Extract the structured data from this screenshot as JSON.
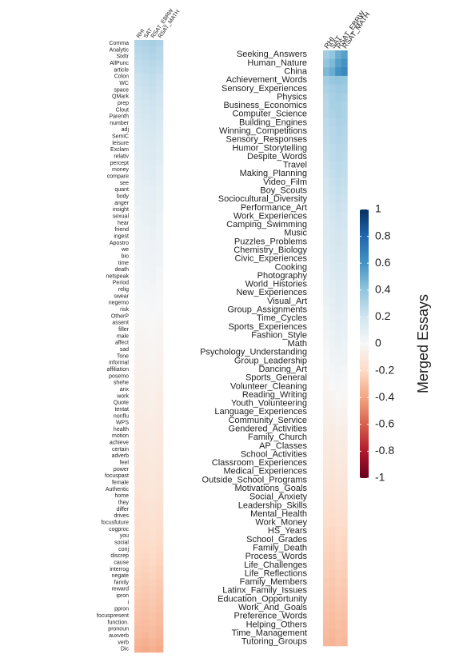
{
  "chart_data": [
    {
      "type": "heatmap",
      "x": [
        "RHI",
        "SAT",
        "RSAT_EBRW",
        "RSAT_MATH"
      ],
      "y": [
        "Comma",
        "Analytic",
        "Sixltr",
        "AllPunc",
        "article",
        "Colon",
        "WC",
        "space",
        "QMark",
        "prep",
        "Clout",
        "Parenth",
        "number",
        "adj",
        "SemiC",
        "leisure",
        "Exclam",
        "relativ",
        "percept",
        "money",
        "compare",
        "see",
        "quant",
        "body",
        "anger",
        "insight",
        "sexual",
        "hear",
        "friend",
        "ingest",
        "Apostro",
        "we",
        "bio",
        "time",
        "death",
        "netspeak",
        "Period",
        "relig",
        "swear",
        "negemo",
        "risk",
        "OtherP",
        "assent",
        "filler",
        "male",
        "affect",
        "sad",
        "Tone",
        "informal",
        "affiliation",
        "posemo",
        "shehe",
        "anx",
        "work",
        "Quote",
        "tentat",
        "nonflu",
        "WPS",
        "health",
        "motion",
        "achieve",
        "certain",
        "adverb",
        "feel",
        "power",
        "focuspast",
        "female",
        "Authentic",
        "home",
        "they",
        "differ",
        "drives",
        "focusfuture",
        "cogproc",
        "you",
        "social",
        "conj",
        "discrep",
        "cause",
        "interrog",
        "negate",
        "family",
        "reward",
        "ipron",
        "i",
        "ppron",
        "focuspresent",
        "function.",
        "pronoun",
        "auxverb",
        "verb",
        "Dic"
      ],
      "values": [
        [
          0.3,
          0.32,
          0.33,
          0.31
        ],
        [
          0.28,
          0.3,
          0.31,
          0.29
        ],
        [
          0.27,
          0.29,
          0.3,
          0.28
        ],
        [
          0.25,
          0.27,
          0.28,
          0.26
        ],
        [
          0.24,
          0.26,
          0.27,
          0.25
        ],
        [
          0.22,
          0.24,
          0.25,
          0.23
        ],
        [
          0.21,
          0.23,
          0.24,
          0.22
        ],
        [
          0.2,
          0.22,
          0.23,
          0.21
        ],
        [
          0.19,
          0.21,
          0.22,
          0.2
        ],
        [
          0.18,
          0.2,
          0.21,
          0.19
        ],
        [
          0.17,
          0.19,
          0.2,
          0.18
        ],
        [
          0.16,
          0.18,
          0.19,
          0.17
        ],
        [
          0.15,
          0.17,
          0.18,
          0.16
        ],
        [
          0.14,
          0.16,
          0.17,
          0.15
        ],
        [
          0.13,
          0.15,
          0.16,
          0.14
        ],
        [
          0.12,
          0.14,
          0.15,
          0.13
        ],
        [
          0.12,
          0.13,
          0.14,
          0.12
        ],
        [
          0.11,
          0.13,
          0.14,
          0.12
        ],
        [
          0.1,
          0.12,
          0.13,
          0.11
        ],
        [
          0.1,
          0.11,
          0.12,
          0.1
        ],
        [
          0.09,
          0.11,
          0.12,
          0.1
        ],
        [
          0.08,
          0.1,
          0.11,
          0.09
        ],
        [
          0.08,
          0.09,
          0.1,
          0.08
        ],
        [
          0.07,
          0.09,
          0.1,
          0.08
        ],
        [
          0.07,
          0.08,
          0.09,
          0.07
        ],
        [
          0.06,
          0.08,
          0.09,
          0.07
        ],
        [
          0.06,
          0.07,
          0.08,
          0.06
        ],
        [
          0.05,
          0.07,
          0.08,
          0.06
        ],
        [
          0.05,
          0.06,
          0.07,
          0.05
        ],
        [
          0.04,
          0.06,
          0.07,
          0.05
        ],
        [
          0.04,
          0.05,
          0.06,
          0.04
        ],
        [
          0.03,
          0.05,
          0.06,
          0.04
        ],
        [
          0.03,
          0.04,
          0.05,
          0.03
        ],
        [
          0.02,
          0.04,
          0.05,
          0.03
        ],
        [
          0.02,
          0.03,
          0.04,
          0.02
        ],
        [
          0.02,
          0.03,
          0.03,
          0.02
        ],
        [
          0.01,
          0.02,
          0.03,
          0.01
        ],
        [
          0.01,
          0.02,
          0.02,
          0.01
        ],
        [
          0.01,
          0.01,
          0.02,
          0
        ],
        [
          0,
          0.01,
          0.01,
          0
        ],
        [
          0,
          0,
          0.01,
          0
        ],
        [
          0,
          0,
          0,
          -0.01
        ],
        [
          -0.01,
          0,
          0,
          -0.01
        ],
        [
          -0.01,
          -0.01,
          0,
          -0.02
        ],
        [
          -0.02,
          -0.01,
          -0.01,
          -0.02
        ],
        [
          -0.02,
          -0.02,
          -0.01,
          -0.03
        ],
        [
          -0.03,
          -0.02,
          -0.02,
          -0.03
        ],
        [
          -0.03,
          -0.03,
          -0.02,
          -0.04
        ],
        [
          -0.04,
          -0.03,
          -0.03,
          -0.04
        ],
        [
          -0.04,
          -0.04,
          -0.03,
          -0.05
        ],
        [
          -0.05,
          -0.04,
          -0.04,
          -0.05
        ],
        [
          -0.05,
          -0.05,
          -0.04,
          -0.06
        ],
        [
          -0.06,
          -0.05,
          -0.05,
          -0.06
        ],
        [
          -0.06,
          -0.06,
          -0.05,
          -0.07
        ],
        [
          -0.07,
          -0.06,
          -0.06,
          -0.07
        ],
        [
          -0.07,
          -0.07,
          -0.06,
          -0.08
        ],
        [
          -0.08,
          -0.07,
          -0.07,
          -0.08
        ],
        [
          -0.08,
          -0.08,
          -0.07,
          -0.09
        ],
        [
          -0.09,
          -0.08,
          -0.08,
          -0.09
        ],
        [
          -0.09,
          -0.09,
          -0.08,
          -0.1
        ],
        [
          -0.1,
          -0.09,
          -0.09,
          -0.1
        ],
        [
          -0.1,
          -0.1,
          -0.09,
          -0.11
        ],
        [
          -0.11,
          -0.1,
          -0.1,
          -0.11
        ],
        [
          -0.11,
          -0.11,
          -0.1,
          -0.12
        ],
        [
          -0.12,
          -0.11,
          -0.11,
          -0.12
        ],
        [
          -0.12,
          -0.12,
          -0.11,
          -0.13
        ],
        [
          -0.13,
          -0.12,
          -0.12,
          -0.13
        ],
        [
          -0.13,
          -0.13,
          -0.12,
          -0.14
        ],
        [
          -0.14,
          -0.13,
          -0.13,
          -0.14
        ],
        [
          -0.15,
          -0.14,
          -0.14,
          -0.15
        ],
        [
          -0.15,
          -0.15,
          -0.14,
          -0.16
        ],
        [
          -0.16,
          -0.16,
          -0.15,
          -0.17
        ],
        [
          -0.17,
          -0.16,
          -0.16,
          -0.17
        ],
        [
          -0.17,
          -0.17,
          -0.16,
          -0.18
        ],
        [
          -0.18,
          -0.18,
          -0.17,
          -0.19
        ],
        [
          -0.19,
          -0.19,
          -0.18,
          -0.2
        ],
        [
          -0.2,
          -0.2,
          -0.19,
          -0.21
        ],
        [
          -0.2,
          -0.21,
          -0.2,
          -0.22
        ],
        [
          -0.21,
          -0.22,
          -0.21,
          -0.23
        ],
        [
          -0.22,
          -0.23,
          -0.22,
          -0.24
        ],
        [
          -0.23,
          -0.24,
          -0.23,
          -0.25
        ],
        [
          -0.24,
          -0.25,
          -0.24,
          -0.26
        ],
        [
          -0.25,
          -0.26,
          -0.25,
          -0.27
        ],
        [
          -0.26,
          -0.27,
          -0.26,
          -0.28
        ],
        [
          -0.27,
          -0.28,
          -0.27,
          -0.29
        ],
        [
          -0.28,
          -0.29,
          -0.28,
          -0.3
        ],
        [
          -0.29,
          -0.3,
          -0.29,
          -0.31
        ],
        [
          -0.3,
          -0.31,
          -0.3,
          -0.32
        ],
        [
          -0.31,
          -0.32,
          -0.31,
          -0.33
        ],
        [
          -0.32,
          -0.34,
          -0.32,
          -0.34
        ],
        [
          -0.34,
          -0.36,
          -0.34,
          -0.36
        ],
        [
          -0.36,
          -0.38,
          -0.36,
          -0.38
        ]
      ],
      "zlim": [
        -1,
        1
      ],
      "colors": [
        "#67001f",
        "#b2182b",
        "#d6604d",
        "#f4a582",
        "#fddbc7",
        "#f7f7f7",
        "#d1e5f0",
        "#92c5de",
        "#4393c3",
        "#2166ac",
        "#053061"
      ]
    },
    {
      "type": "heatmap",
      "x": [
        "RHI",
        "SAT",
        "RSAT_EBRW",
        "RSAT_MATH"
      ],
      "y": [
        "Seeking_Answers",
        "Human_Nature",
        "China",
        "Achievement_Words",
        "Sensory_Experiences",
        "Physics",
        "Business_Economics",
        "Computer_Science",
        "Building_Engines",
        "Winning_Competitions",
        "Sensory_Responses",
        "Humor_Storytelling",
        "Despite_Words",
        "Travel",
        "Making_Planning",
        "Video_Film",
        "Boy_Scouts",
        "Sociocultural_Diversity",
        "Performance_Art",
        "Work_Experiences",
        "Camping_Swimming",
        "Music",
        "Puzzles_Problems",
        "Chemistry_Biology",
        "Civic_Experiences",
        "Cooking",
        "Photography",
        "World_Histories",
        "New_Experiences",
        "Visual_Art",
        "Group_Assignments",
        "Time_Cycles",
        "Sports_Experiences",
        "Fashion_Style",
        "Math",
        "Psychology_Understanding",
        "Group_Leadership",
        "Dancing_Art",
        "Sports_General",
        "Volunteer_Cleaning",
        "Reading_Writing",
        "Youth_Volunteering",
        "Language_Experiences",
        "Community_Service",
        "Gendered_Activities",
        "Family_Church",
        "AP_Classes",
        "School_Activities",
        "Classroom_Experiences",
        "Medical_Experiences",
        "Outside_School_Programs",
        "Motivations_Goals",
        "Social_Anxiety",
        "Leadership_Skills",
        "Mental_Health",
        "Work_Money",
        "HS_Years",
        "School_Grades",
        "Family_Death",
        "Process_Words",
        "Life_Challenges",
        "Life_Reflections",
        "Family_Members",
        "Latinx_Family_Issues",
        "Education_Opportunity",
        "Work_And_Goals",
        "Preference_Words",
        "Helping_Others",
        "Time_Management",
        "Tutoring_Groups"
      ],
      "values": [
        [
          0.35,
          0.4,
          0.5,
          0.55
        ],
        [
          0.4,
          0.45,
          0.55,
          0.6
        ],
        [
          0.45,
          0.5,
          0.6,
          0.65
        ],
        [
          0.35,
          0.38,
          0.4,
          0.39
        ],
        [
          0.32,
          0.35,
          0.37,
          0.36
        ],
        [
          0.3,
          0.33,
          0.35,
          0.34
        ],
        [
          0.28,
          0.33,
          0.34,
          0.32
        ],
        [
          0.28,
          0.31,
          0.33,
          0.32
        ],
        [
          0.27,
          0.3,
          0.32,
          0.31
        ],
        [
          0.26,
          0.29,
          0.31,
          0.3
        ],
        [
          0.25,
          0.28,
          0.3,
          0.29
        ],
        [
          0.24,
          0.27,
          0.29,
          0.28
        ],
        [
          0.23,
          0.26,
          0.28,
          0.27
        ],
        [
          0.22,
          0.25,
          0.27,
          0.26
        ],
        [
          0.21,
          0.24,
          0.26,
          0.25
        ],
        [
          0.2,
          0.23,
          0.25,
          0.24
        ],
        [
          0.19,
          0.22,
          0.24,
          0.23
        ],
        [
          0.18,
          0.21,
          0.23,
          0.22
        ],
        [
          0.17,
          0.2,
          0.22,
          0.21
        ],
        [
          0.16,
          0.19,
          0.21,
          0.2
        ],
        [
          0.15,
          0.18,
          0.2,
          0.19
        ],
        [
          0.15,
          0.17,
          0.19,
          0.18
        ],
        [
          0.14,
          0.17,
          0.19,
          0.18
        ],
        [
          0.13,
          0.16,
          0.18,
          0.17
        ],
        [
          0.12,
          0.15,
          0.17,
          0.16
        ],
        [
          0.11,
          0.14,
          0.16,
          0.15
        ],
        [
          0.1,
          0.13,
          0.15,
          0.14
        ],
        [
          0.09,
          0.12,
          0.14,
          0.13
        ],
        [
          0.08,
          0.11,
          0.13,
          0.12
        ],
        [
          0.07,
          0.1,
          0.12,
          0.11
        ],
        [
          0.06,
          0.09,
          0.11,
          0.1
        ],
        [
          0.05,
          0.08,
          0.1,
          0.09
        ],
        [
          0.04,
          0.07,
          0.09,
          0.08
        ],
        [
          0.03,
          0.06,
          0.08,
          0.07
        ],
        [
          0.02,
          0.05,
          0.07,
          0.06
        ],
        [
          0.01,
          0.04,
          0.06,
          0.05
        ],
        [
          0,
          0.03,
          0.05,
          0.04
        ],
        [
          0,
          0.02,
          0.03,
          0.02
        ],
        [
          -0.01,
          0.01,
          0.02,
          0.01
        ],
        [
          -0.02,
          0,
          0.01,
          0
        ],
        [
          -0.03,
          -0.02,
          0,
          -0.01
        ],
        [
          -0.04,
          -0.03,
          -0.01,
          -0.02
        ],
        [
          -0.05,
          -0.05,
          -0.03,
          -0.04
        ],
        [
          -0.06,
          -0.06,
          -0.04,
          -0.05
        ],
        [
          -0.07,
          -0.08,
          -0.06,
          -0.07
        ],
        [
          -0.08,
          -0.09,
          -0.07,
          -0.08
        ],
        [
          -0.09,
          -0.1,
          -0.08,
          -0.09
        ],
        [
          -0.1,
          -0.11,
          -0.09,
          -0.1
        ],
        [
          -0.11,
          -0.12,
          -0.1,
          -0.11
        ],
        [
          -0.12,
          -0.13,
          -0.11,
          -0.12
        ],
        [
          -0.13,
          -0.14,
          -0.12,
          -0.13
        ],
        [
          -0.14,
          -0.15,
          -0.13,
          -0.14
        ],
        [
          -0.15,
          -0.16,
          -0.14,
          -0.15
        ],
        [
          -0.16,
          -0.17,
          -0.15,
          -0.16
        ],
        [
          -0.17,
          -0.18,
          -0.16,
          -0.17
        ],
        [
          -0.18,
          -0.19,
          -0.17,
          -0.18
        ],
        [
          -0.2,
          -0.21,
          -0.19,
          -0.2
        ],
        [
          -0.21,
          -0.22,
          -0.2,
          -0.21
        ],
        [
          -0.22,
          -0.23,
          -0.21,
          -0.22
        ],
        [
          -0.23,
          -0.24,
          -0.22,
          -0.23
        ],
        [
          -0.24,
          -0.25,
          -0.23,
          -0.24
        ],
        [
          -0.25,
          -0.26,
          -0.24,
          -0.25
        ],
        [
          -0.26,
          -0.27,
          -0.25,
          -0.26
        ],
        [
          -0.27,
          -0.28,
          -0.26,
          -0.27
        ],
        [
          -0.28,
          -0.29,
          -0.27,
          -0.28
        ],
        [
          -0.29,
          -0.3,
          -0.28,
          -0.29
        ],
        [
          -0.3,
          -0.31,
          -0.29,
          -0.3
        ],
        [
          -0.31,
          -0.32,
          -0.3,
          -0.31
        ],
        [
          -0.32,
          -0.33,
          -0.31,
          -0.32
        ],
        [
          -0.33,
          -0.34,
          -0.32,
          -0.33
        ]
      ],
      "zlim": [
        -1,
        1
      ],
      "colors": [
        "#67001f",
        "#b2182b",
        "#d6604d",
        "#f4a582",
        "#fddbc7",
        "#f7f7f7",
        "#d1e5f0",
        "#92c5de",
        "#4393c3",
        "#2166ac",
        "#053061"
      ],
      "colorbar_title": "Merged Essays",
      "zticks": [
        1,
        0.8,
        0.6,
        0.4,
        0.2,
        0,
        -0.2,
        -0.4,
        -0.6,
        -0.8,
        -1
      ]
    }
  ]
}
